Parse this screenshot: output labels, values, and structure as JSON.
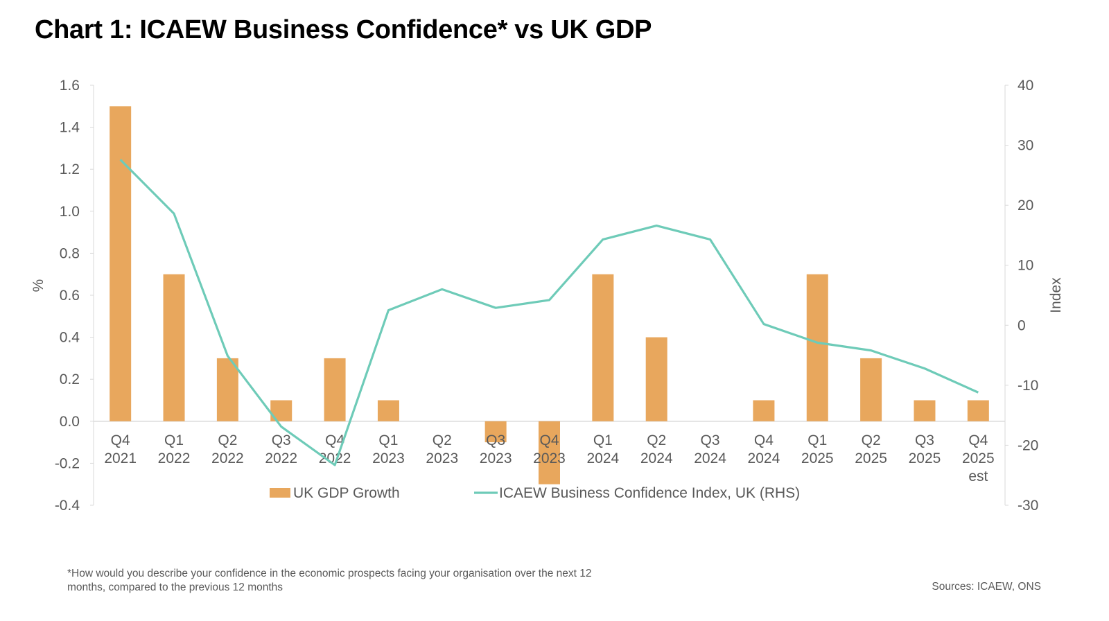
{
  "title": "Chart 1: ICAEW Business Confidence* vs UK GDP",
  "footnote": "*How would you describe your confidence in the economic prospects facing your organisation over the next 12 months, compared to the previous 12 months",
  "source": "Sources: ICAEW, ONS",
  "chart_data": {
    "type": "bar+line",
    "title": "Chart 1: ICAEW Business Confidence* vs UK GDP",
    "categories": [
      [
        "Q4",
        "2021"
      ],
      [
        "Q1",
        "2022"
      ],
      [
        "Q2",
        "2022"
      ],
      [
        "Q3",
        "2022"
      ],
      [
        "Q4",
        "2022"
      ],
      [
        "Q1",
        "2023"
      ],
      [
        "Q2",
        "2023"
      ],
      [
        "Q3",
        "2023"
      ],
      [
        "Q4",
        "2023"
      ],
      [
        "Q1",
        "2024"
      ],
      [
        "Q2",
        "2024"
      ],
      [
        "Q3",
        "2024"
      ],
      [
        "Q4",
        "2024"
      ],
      [
        "Q1",
        "2025"
      ],
      [
        "Q2",
        "2025"
      ],
      [
        "Q3",
        "2025"
      ],
      [
        "Q4",
        "2025",
        "est"
      ]
    ],
    "ylabel": "%",
    "y2label": "Index",
    "ylim": [
      -0.4,
      1.6
    ],
    "yticks": [
      "1.6",
      "1.4",
      "1.2",
      "1.0",
      "0.8",
      "0.6",
      "0.4",
      "0.2",
      "0.0",
      "-0.2",
      "-0.4"
    ],
    "y2lim": [
      -30,
      40
    ],
    "y2ticks": [
      "40",
      "30",
      "20",
      "10",
      "0",
      "-10",
      "-20",
      "-30"
    ],
    "grid": false,
    "legend": "bottom",
    "series": [
      {
        "name": "UK GDP Growth",
        "type": "bar",
        "axis": "left",
        "color": "#E8A75D",
        "values": [
          1.5,
          0.7,
          0.3,
          0.1,
          0.3,
          0.1,
          0.0,
          -0.1,
          -0.3,
          0.7,
          0.4,
          0.0,
          0.1,
          0.7,
          0.3,
          0.1,
          0.1
        ]
      },
      {
        "name": "ICAEW Business Confidence Index, UK (RHS)",
        "type": "line",
        "axis": "right",
        "color": "#6ECBB8",
        "values": [
          27.6,
          18.6,
          -5.1,
          -16.9,
          -23.3,
          2.5,
          6.0,
          2.9,
          4.2,
          14.3,
          16.6,
          14.3,
          0.2,
          -2.9,
          -4.2,
          -7.2,
          -11.2
        ]
      }
    ]
  }
}
